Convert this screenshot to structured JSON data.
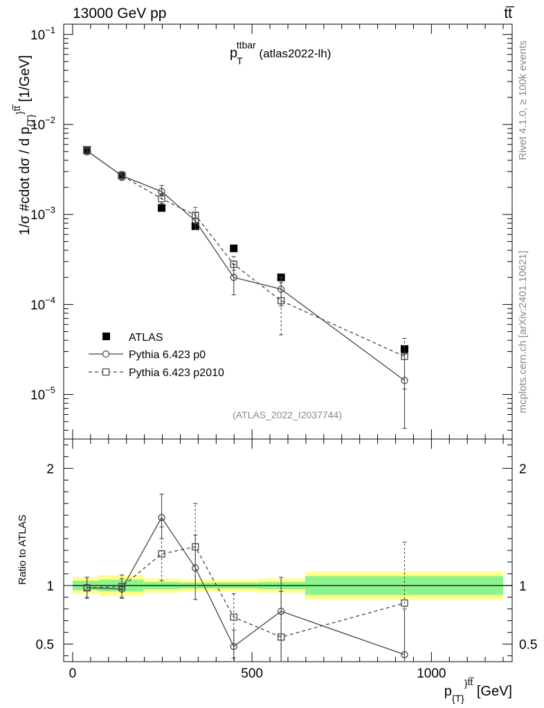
{
  "header": {
    "left": "13000 GeV pp",
    "right": "tt̅"
  },
  "side_labels": {
    "rivet": "Rivet 4.1.0, ≥ 100k events",
    "mcplots": "mcplots.cern.ch [arXiv:2401.10621]"
  },
  "chart_data": [
    {
      "type": "scatter",
      "title_main": "p",
      "title_sub": "T",
      "title_sup": "ttbar",
      "title_rest": " (atlas2022-lh)",
      "analysis_id": "(ATLAS_2022_I2037744)",
      "ylabel_pre": "1/σ #cdot dσ / d p",
      "ylabel_sub": "{T}",
      "ylabel_sup": "}",
      "ylabel_sup2": "tt̅",
      "ylabel_post": " [1/GeV]",
      "yscale": "log",
      "ylim": [
        3.2e-06,
        0.13
      ],
      "xlim": [
        -25,
        1225
      ],
      "y_ticks": [
        {
          "value": 0.1,
          "base": "10",
          "exp": "−1"
        },
        {
          "value": 0.01,
          "base": "10",
          "exp": "−2"
        },
        {
          "value": 0.001,
          "base": "10",
          "exp": "−3"
        },
        {
          "value": 0.0001,
          "base": "10",
          "exp": "−4"
        },
        {
          "value": 1e-05,
          "base": "10",
          "exp": "−5"
        }
      ],
      "series": [
        {
          "name": "ATLAS",
          "marker": "filled-square",
          "x": [
            40,
            137,
            248,
            342,
            449,
            581,
            925
          ],
          "y": [
            0.0052,
            0.0027,
            0.00118,
            0.00074,
            0.00042,
            0.0002,
            3.2e-05
          ]
        },
        {
          "name": "Pythia 6.423 p0",
          "marker": "open-circle",
          "line": "solid",
          "x": [
            40,
            137,
            248,
            342,
            449,
            581,
            925
          ],
          "y": [
            0.0051,
            0.0027,
            0.0018,
            0.00085,
            0.0002,
            0.000148,
            1.43e-05
          ],
          "err_low": [
            0.0046,
            0.0024,
            0.0016,
            0.00068,
            0.000128,
            9.6e-05,
            4.2e-06
          ],
          "err_high": [
            0.0056,
            0.003,
            0.0021,
            0.00105,
            0.00028,
            0.0002,
            2.8e-05
          ]
        },
        {
          "name": "Pythia 6.423 p2010",
          "marker": "open-square",
          "line": "dashed",
          "x": [
            40,
            137,
            248,
            342,
            449,
            581,
            925
          ],
          "y": [
            0.0051,
            0.0027,
            0.0015,
            0.00098,
            0.00028,
            0.00011,
            2.65e-05
          ],
          "err_low": [
            0.0046,
            0.0024,
            0.00132,
            0.0008,
            0.00024,
            4.6e-05,
            1.15e-05
          ],
          "err_high": [
            0.0056,
            0.003,
            0.0017,
            0.0012,
            0.00034,
            0.000175,
            4.2e-05
          ]
        }
      ]
    },
    {
      "type": "scatter",
      "ylabel": "Ratio to ATLAS",
      "xlabel_pre": "p",
      "xlabel_sub": "{T}",
      "xlabel_sup": "}",
      "xlabel_sup2": "tt̅",
      "xlabel_post": " [GeV]",
      "xlim": [
        -25,
        1225
      ],
      "ylim": [
        0.35,
        2.25
      ],
      "x_ticks": [
        0,
        500,
        1000
      ],
      "x_tick_labels": [
        "0",
        "500",
        "1000"
      ],
      "y_ticks": [
        0.5,
        1,
        2
      ],
      "y_tick_labels": [
        "0.5",
        "1",
        "2"
      ],
      "bands": {
        "edges": [
          0,
          73,
          197,
          300,
          385,
          518,
          648,
          1200
        ],
        "yellow_low": [
          0.93,
          0.91,
          0.94,
          0.95,
          0.95,
          0.94,
          0.88
        ],
        "yellow_high": [
          1.07,
          1.09,
          1.06,
          1.05,
          1.05,
          1.06,
          1.12
        ],
        "green_low": [
          0.96,
          0.95,
          0.97,
          0.975,
          0.975,
          0.97,
          0.92
        ],
        "green_high": [
          1.04,
          1.05,
          1.03,
          1.025,
          1.025,
          1.03,
          1.08
        ]
      },
      "series": [
        {
          "name": "Pythia 6.423 p0",
          "marker": "open-circle",
          "line": "solid",
          "x": [
            40,
            137,
            248,
            342,
            449,
            581,
            925
          ],
          "y": [
            0.98,
            0.97,
            1.58,
            1.15,
            0.48,
            0.78,
            0.41
          ],
          "err_low": [
            0.89,
            0.89,
            1.4,
            0.88,
            0.35,
            0.35,
            0.35
          ],
          "err_high": [
            1.07,
            1.06,
            1.78,
            1.43,
            0.62,
            1.07,
            0.8
          ]
        },
        {
          "name": "Pythia 6.423 p2010",
          "marker": "open-square",
          "line": "dashed",
          "x": [
            40,
            137,
            248,
            342,
            449,
            581,
            925
          ],
          "y": [
            0.98,
            0.99,
            1.27,
            1.33,
            0.73,
            0.56,
            0.85
          ],
          "err_low": [
            0.9,
            0.9,
            1.04,
            1.0,
            0.38,
            0.35,
            0.35
          ],
          "err_high": [
            1.07,
            1.09,
            1.5,
            1.7,
            0.93,
            0.95,
            1.37
          ]
        }
      ]
    }
  ]
}
